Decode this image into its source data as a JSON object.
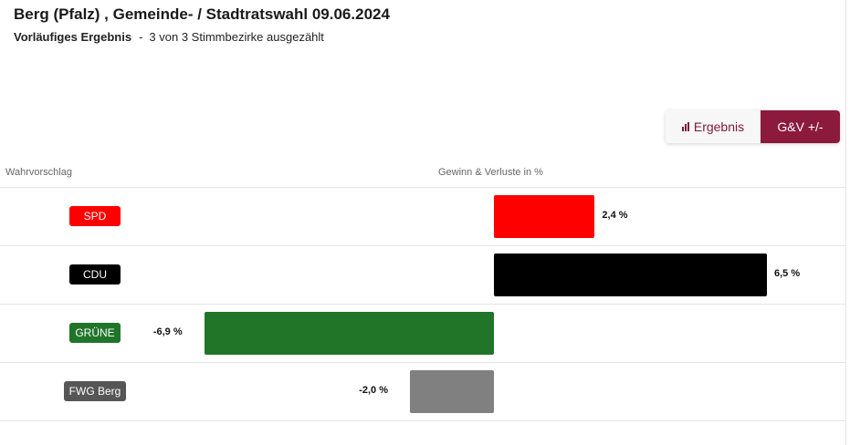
{
  "header": {
    "title": "Berg (Pfalz) , Gemeinde- / Stadtratswahl 09.06.2024",
    "status_label": "Vorläufiges Ergebnis",
    "separator": "-",
    "status_detail": "3 von 3 Stimmbezirke ausgezählt"
  },
  "toggle": {
    "result_label": "Ergebnis",
    "result_icon": "bar-chart-icon",
    "gv_label": "G&V +/-",
    "active": "G&V +/-"
  },
  "columns": {
    "left": "Wahrvorschlag",
    "right": "Gewinn & Verluste in %"
  },
  "chart_data": {
    "type": "bar",
    "orientation": "horizontal",
    "categories": [
      "SPD",
      "CDU",
      "GRÜNE",
      "FWG Berg"
    ],
    "values": [
      2.4,
      6.5,
      -6.9,
      -2.0
    ],
    "value_labels": [
      "2,4 %",
      "6,5 %",
      "-6,9 %",
      "-2,0 %"
    ],
    "colors": [
      "#ff0000",
      "#000000",
      "#207529",
      "#808080"
    ],
    "badge_colors": [
      "#ff0000",
      "#000000",
      "#207529",
      "#565656"
    ],
    "xlim": [
      -7,
      7
    ],
    "zero_line": true
  }
}
